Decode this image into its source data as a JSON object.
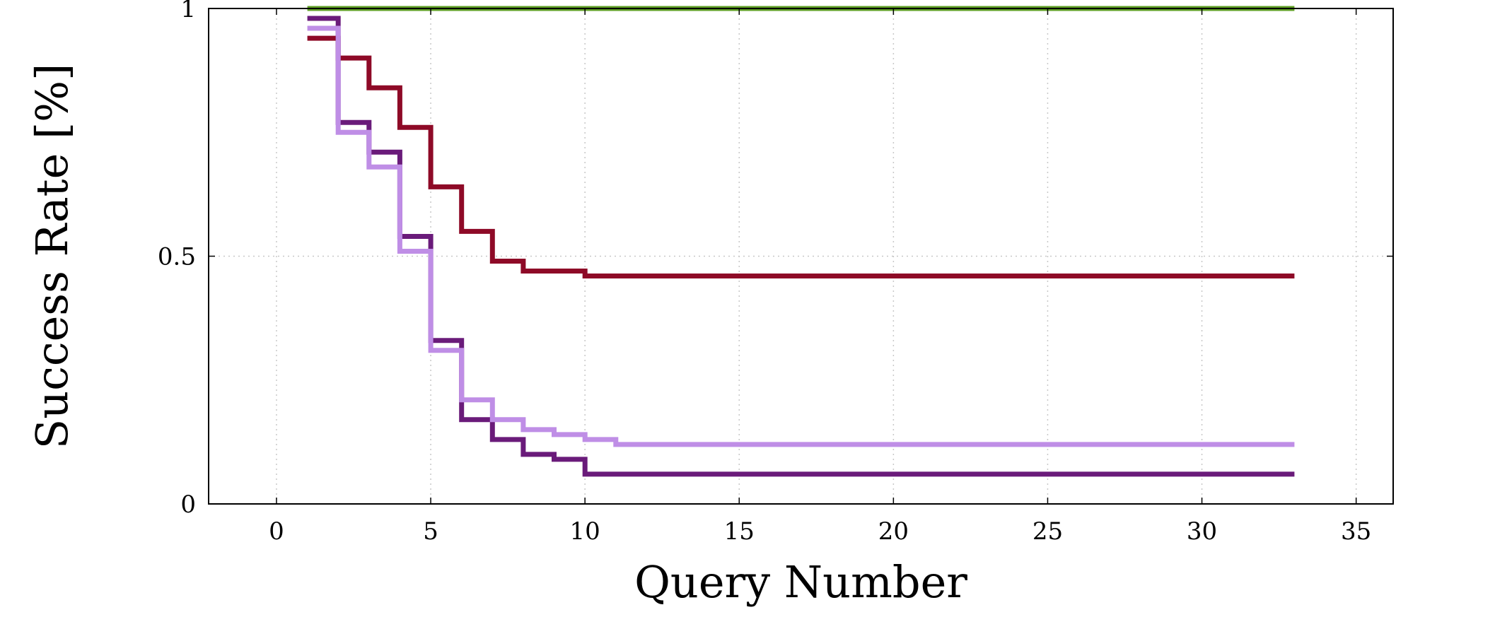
{
  "chart_data": {
    "type": "line",
    "step": true,
    "title": "",
    "xlabel": "Query Number",
    "ylabel": "Success Rate [%]",
    "xlim": [
      -2.2,
      36.2
    ],
    "ylim": [
      0,
      1
    ],
    "xticks": [
      0,
      5,
      10,
      15,
      20,
      25,
      30,
      35
    ],
    "yticks": [
      0,
      0.5,
      1
    ],
    "xtick_labels": [
      "0",
      "5",
      "10",
      "15",
      "20",
      "25",
      "30",
      "35"
    ],
    "ytick_labels": [
      "0",
      "0.5",
      "1"
    ],
    "grid": true,
    "legend": "none",
    "series": [
      {
        "color": "#5e9e23",
        "points": [
          [
            1,
            1.0
          ],
          [
            33,
            1.0
          ]
        ]
      },
      {
        "color": "#8e0a27",
        "points": [
          [
            1,
            0.94
          ],
          [
            2,
            0.94
          ],
          [
            2,
            0.9
          ],
          [
            3,
            0.9
          ],
          [
            3,
            0.84
          ],
          [
            4,
            0.84
          ],
          [
            4,
            0.76
          ],
          [
            5,
            0.76
          ],
          [
            5,
            0.64
          ],
          [
            6,
            0.64
          ],
          [
            6,
            0.55
          ],
          [
            7,
            0.55
          ],
          [
            7,
            0.49
          ],
          [
            8,
            0.49
          ],
          [
            8,
            0.47
          ],
          [
            10,
            0.47
          ],
          [
            10,
            0.46
          ],
          [
            33,
            0.46
          ]
        ]
      },
      {
        "color": "#6a1b7a",
        "points": [
          [
            1,
            0.98
          ],
          [
            2,
            0.98
          ],
          [
            2,
            0.77
          ],
          [
            3,
            0.77
          ],
          [
            3,
            0.71
          ],
          [
            4,
            0.71
          ],
          [
            4,
            0.54
          ],
          [
            5,
            0.54
          ],
          [
            5,
            0.33
          ],
          [
            6,
            0.33
          ],
          [
            6,
            0.17
          ],
          [
            7,
            0.17
          ],
          [
            7,
            0.13
          ],
          [
            8,
            0.13
          ],
          [
            8,
            0.1
          ],
          [
            9,
            0.1
          ],
          [
            9,
            0.09
          ],
          [
            10,
            0.09
          ],
          [
            10,
            0.06
          ],
          [
            33,
            0.06
          ]
        ]
      },
      {
        "color": "#bf8ee6",
        "points": [
          [
            1,
            0.96
          ],
          [
            2,
            0.96
          ],
          [
            2,
            0.75
          ],
          [
            3,
            0.75
          ],
          [
            3,
            0.68
          ],
          [
            4,
            0.68
          ],
          [
            4,
            0.51
          ],
          [
            5,
            0.51
          ],
          [
            5,
            0.31
          ],
          [
            6,
            0.31
          ],
          [
            6,
            0.21
          ],
          [
            7,
            0.21
          ],
          [
            7,
            0.17
          ],
          [
            8,
            0.17
          ],
          [
            8,
            0.15
          ],
          [
            9,
            0.15
          ],
          [
            9,
            0.14
          ],
          [
            10,
            0.14
          ],
          [
            10,
            0.13
          ],
          [
            11,
            0.13
          ],
          [
            11,
            0.12
          ],
          [
            33,
            0.12
          ]
        ]
      }
    ]
  }
}
